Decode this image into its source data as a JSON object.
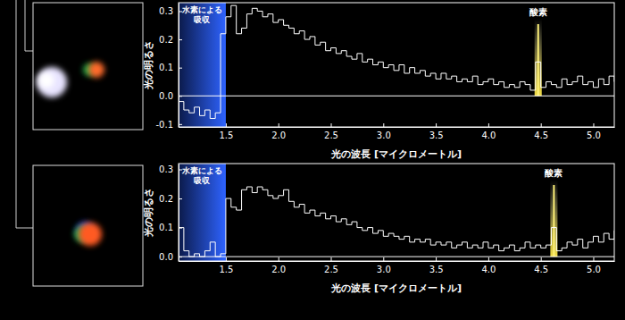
{
  "chart_data": [
    {
      "type": "line",
      "line_style": "step",
      "color": "#ffffff",
      "xlabel": "光の波長 [マイクロメートル]",
      "ylabel": "光の明るさ",
      "xlim": [
        1.05,
        5.2
      ],
      "ylim": [
        -0.11,
        0.33
      ],
      "xticks": [
        {
          "value": 1.5,
          "label": "1.5"
        },
        {
          "value": 2,
          "label": "2.0"
        },
        {
          "value": 2.5,
          "label": "2.5"
        },
        {
          "value": 3,
          "label": "3.0"
        },
        {
          "value": 3.5,
          "label": "3.5"
        },
        {
          "value": 4,
          "label": "4.0"
        },
        {
          "value": 4.5,
          "label": "4.5"
        },
        {
          "value": 5,
          "label": "5.0"
        }
      ],
      "yticks": [
        -0.1,
        {
          "value": 0,
          "label": "0.0"
        },
        0.1,
        0.2,
        0.3
      ],
      "grid": false,
      "annotations": [
        {
          "type": "band",
          "text": [
            "水素による",
            "吸収"
          ],
          "x0": 1.05,
          "x1": 1.5
        },
        {
          "type": "vline",
          "text": "酸素",
          "x": 4.475
        }
      ],
      "x": [
        1.05,
        1.1,
        1.15,
        1.2,
        1.25,
        1.3,
        1.35,
        1.4,
        1.45,
        1.5,
        1.55,
        1.6,
        1.65,
        1.7,
        1.75,
        1.8,
        1.85,
        1.9,
        1.95,
        2.0,
        2.05,
        2.1,
        2.15,
        2.2,
        2.25,
        2.3,
        2.35,
        2.4,
        2.45,
        2.5,
        2.55,
        2.6,
        2.65,
        2.7,
        2.75,
        2.8,
        2.85,
        2.9,
        2.95,
        3.0,
        3.05,
        3.1,
        3.15,
        3.2,
        3.25,
        3.3,
        3.35,
        3.4,
        3.45,
        3.5,
        3.55,
        3.6,
        3.65,
        3.7,
        3.75,
        3.8,
        3.85,
        3.9,
        3.95,
        4.0,
        4.05,
        4.1,
        4.15,
        4.2,
        4.25,
        4.3,
        4.35,
        4.4,
        4.45,
        4.5,
        4.55,
        4.6,
        4.65,
        4.7,
        4.75,
        4.8,
        4.85,
        4.9,
        4.95,
        5.0,
        5.05,
        5.1,
        5.15,
        5.2
      ],
      "values": [
        -0.02,
        -0.05,
        -0.06,
        -0.04,
        -0.07,
        -0.05,
        -0.08,
        -0.06,
        0.22,
        0.28,
        0.32,
        0.22,
        0.24,
        0.29,
        0.31,
        0.3,
        0.28,
        0.29,
        0.26,
        0.27,
        0.25,
        0.24,
        0.22,
        0.23,
        0.2,
        0.21,
        0.18,
        0.19,
        0.16,
        0.17,
        0.15,
        0.16,
        0.14,
        0.13,
        0.15,
        0.12,
        0.13,
        0.11,
        0.12,
        0.1,
        0.11,
        0.09,
        0.11,
        0.08,
        0.1,
        0.08,
        0.09,
        0.07,
        0.08,
        0.06,
        0.08,
        0.06,
        0.07,
        0.05,
        0.06,
        0.05,
        0.07,
        0.04,
        0.05,
        0.06,
        0.04,
        0.05,
        0.03,
        0.04,
        0.03,
        0.05,
        0.04,
        0.02,
        0.12,
        0.03,
        0.05,
        0.04,
        0.03,
        0.06,
        0.04,
        0.05,
        0.07,
        0.04,
        0.05,
        0.03,
        0.06,
        0.04,
        0.07,
        0.05
      ]
    },
    {
      "type": "line",
      "line_style": "step",
      "color": "#ffffff",
      "xlabel": "光の波長 [マイクロメートル]",
      "ylabel": "光の明るさ",
      "xlim": [
        1.05,
        5.2
      ],
      "ylim": [
        -0.015,
        0.32
      ],
      "xticks": [
        {
          "value": 1.5,
          "label": "1.5"
        },
        {
          "value": 2,
          "label": "2.0"
        },
        {
          "value": 2.5,
          "label": "2.5"
        },
        {
          "value": 3,
          "label": "3.0"
        },
        {
          "value": 3.5,
          "label": "3.5"
        },
        {
          "value": 4,
          "label": "4.0"
        },
        {
          "value": 4.5,
          "label": "4.5"
        },
        {
          "value": 5,
          "label": "5.0"
        }
      ],
      "yticks": [
        {
          "value": 0,
          "label": "0.0"
        },
        0.1,
        0.2,
        0.3
      ],
      "grid": false,
      "annotations": [
        {
          "type": "band",
          "text": [
            "水素による",
            "吸収"
          ],
          "x0": 1.05,
          "x1": 1.5
        },
        {
          "type": "vline",
          "text": "酸素",
          "x": 4.625
        }
      ],
      "x": [
        1.05,
        1.1,
        1.15,
        1.2,
        1.25,
        1.3,
        1.35,
        1.4,
        1.45,
        1.5,
        1.55,
        1.6,
        1.65,
        1.7,
        1.75,
        1.8,
        1.85,
        1.9,
        1.95,
        2.0,
        2.05,
        2.1,
        2.15,
        2.2,
        2.25,
        2.3,
        2.35,
        2.4,
        2.45,
        2.5,
        2.55,
        2.6,
        2.65,
        2.7,
        2.75,
        2.8,
        2.85,
        2.9,
        2.95,
        3.0,
        3.05,
        3.1,
        3.15,
        3.2,
        3.25,
        3.3,
        3.35,
        3.4,
        3.45,
        3.5,
        3.55,
        3.6,
        3.65,
        3.7,
        3.75,
        3.8,
        3.85,
        3.9,
        3.95,
        4.0,
        4.05,
        4.1,
        4.15,
        4.2,
        4.25,
        4.3,
        4.35,
        4.4,
        4.45,
        4.5,
        4.55,
        4.6,
        4.65,
        4.7,
        4.75,
        4.8,
        4.85,
        4.9,
        4.95,
        5.0,
        5.05,
        5.1,
        5.15,
        5.2
      ],
      "values": [
        0.1,
        0.02,
        0.0,
        0.01,
        0.0,
        0.02,
        0.05,
        0.0,
        0.01,
        0.2,
        0.17,
        0.16,
        0.23,
        0.24,
        0.22,
        0.24,
        0.23,
        0.21,
        0.2,
        0.21,
        0.23,
        0.19,
        0.17,
        0.18,
        0.15,
        0.16,
        0.14,
        0.15,
        0.13,
        0.14,
        0.12,
        0.13,
        0.11,
        0.12,
        0.1,
        0.09,
        0.1,
        0.08,
        0.09,
        0.07,
        0.08,
        0.07,
        0.06,
        0.07,
        0.05,
        0.06,
        0.05,
        0.06,
        0.04,
        0.05,
        0.04,
        0.05,
        0.03,
        0.04,
        0.05,
        0.03,
        0.04,
        0.03,
        0.05,
        0.03,
        0.04,
        0.02,
        0.03,
        0.04,
        0.02,
        0.03,
        0.05,
        0.03,
        0.04,
        0.03,
        0.04,
        0.1,
        0.02,
        0.03,
        0.05,
        0.04,
        0.06,
        0.03,
        0.05,
        0.07,
        0.05,
        0.08,
        0.06,
        0.09
      ]
    }
  ]
}
